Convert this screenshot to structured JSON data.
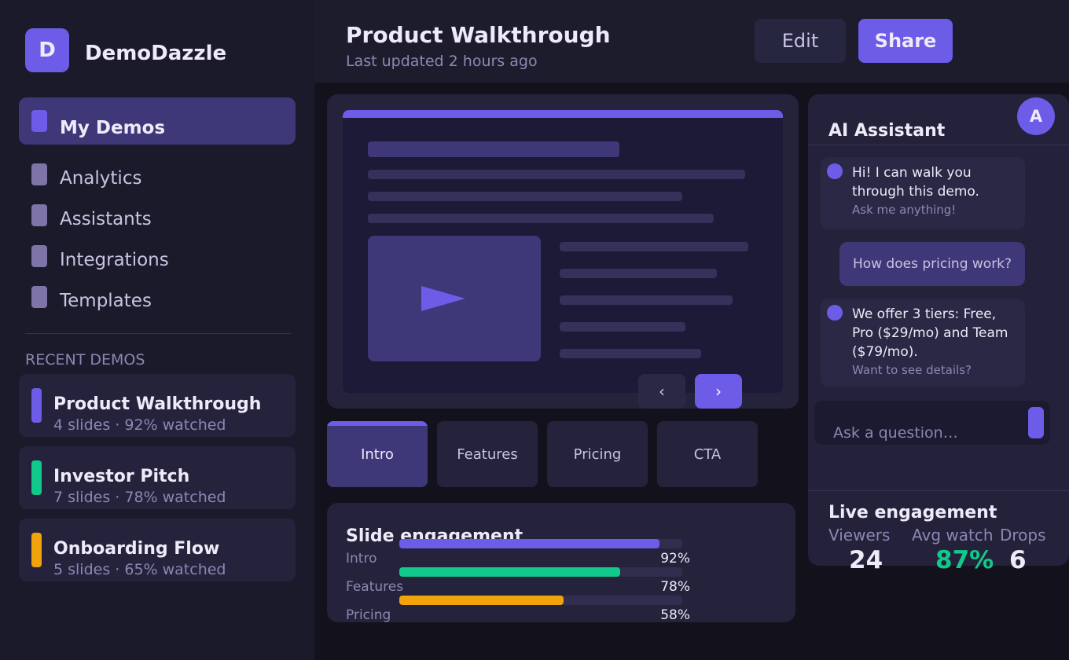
{
  "brand": {
    "initial": "D",
    "name": "DemoDazzle"
  },
  "nav": {
    "items": [
      "My Demos",
      "Analytics",
      "Assistants",
      "Integrations",
      "Templates"
    ]
  },
  "recent": {
    "heading": "RECENT DEMOS",
    "items": [
      {
        "title": "Product Walkthrough",
        "meta": "4 slides · 92% watched",
        "color": "#6c5ce7"
      },
      {
        "title": "Investor Pitch",
        "meta": "7 slides · 78% watched",
        "color": "#10c98a"
      },
      {
        "title": "Onboarding Flow",
        "meta": "5 slides · 65% watched",
        "color": "#f0a30a"
      }
    ]
  },
  "header": {
    "title": "Product Walkthrough",
    "subtitle": "Last updated 2 hours ago",
    "buttons": [
      "Edit",
      "Share"
    ]
  },
  "tabs": [
    "Intro",
    "Features",
    "Pricing",
    "CTA"
  ],
  "engagement": {
    "title": "Slide engagement",
    "rows": [
      {
        "label": "Intro",
        "value": 92,
        "value_label": "92%",
        "color": "#6c5ce7"
      },
      {
        "label": "Features",
        "value": 78,
        "value_label": "78%",
        "color": "#10c98a"
      },
      {
        "label": "Pricing",
        "value": 58,
        "value_label": "58%",
        "color": "#f0a30a"
      }
    ]
  },
  "assistant": {
    "title": "AI Assistant",
    "avatar": "A",
    "messages": [
      {
        "text": "Hi! I can walk you through this demo.",
        "note": "Ask me anything!"
      },
      {
        "text": "How does pricing work?"
      },
      {
        "text": "We offer 3 tiers: Free, Pro ($29/mo) and Team ($79/mo).",
        "note": "Want to see details?"
      }
    ],
    "placeholder": "Ask a question…"
  },
  "live": {
    "title": "Live engagement",
    "stats": [
      {
        "label": "Viewers",
        "value": 24
      },
      {
        "label": "Avg watch",
        "value": 87,
        "value_label": "87%"
      },
      {
        "label": "Drops",
        "value": 6
      }
    ]
  }
}
